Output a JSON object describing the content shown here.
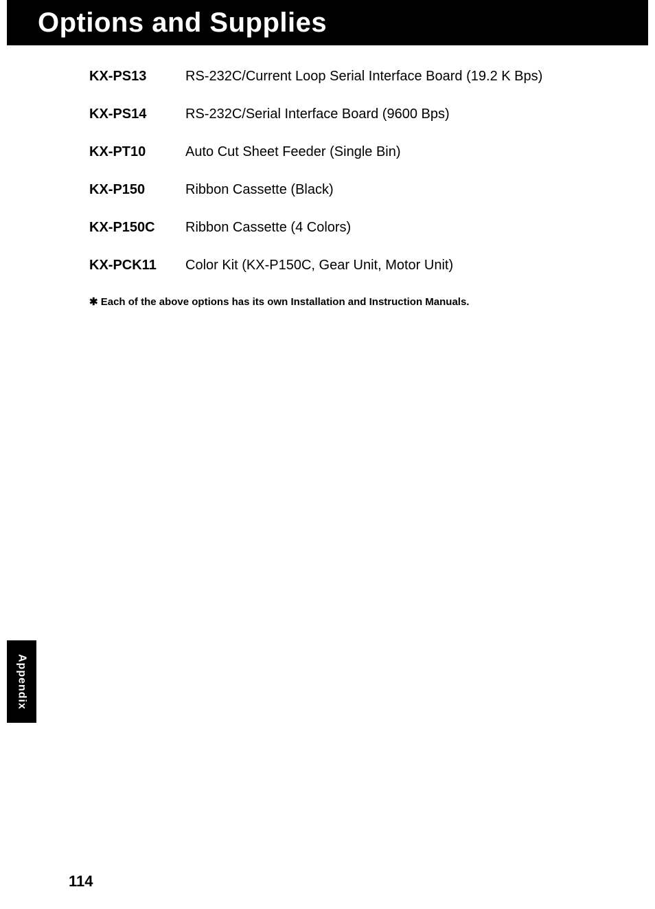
{
  "header": {
    "title": "Options and Supplies"
  },
  "items": [
    {
      "part": "KX-PS13",
      "desc": "RS-232C/Current Loop Serial Interface Board (19.2 K Bps)"
    },
    {
      "part": "KX-PS14",
      "desc": "RS-232C/Serial Interface Board (9600 Bps)"
    },
    {
      "part": "KX-PT10",
      "desc": "Auto Cut Sheet Feeder (Single Bin)"
    },
    {
      "part": "KX-P150",
      "desc": "Ribbon Cassette (Black)"
    },
    {
      "part": "KX-P150C",
      "desc": "Ribbon Cassette (4 Colors)"
    },
    {
      "part": "KX-PCK11",
      "desc": "Color Kit (KX-P150C, Gear Unit, Motor Unit)"
    }
  ],
  "note": "✱ Each of the above options has its own Installation and Instruction Manuals.",
  "side_tab": "Appendix",
  "page_number": "114",
  "colors": {
    "header_bg": "#000000",
    "header_text": "#ffffff",
    "body_text": "#000000",
    "page_bg": "#ffffff"
  }
}
